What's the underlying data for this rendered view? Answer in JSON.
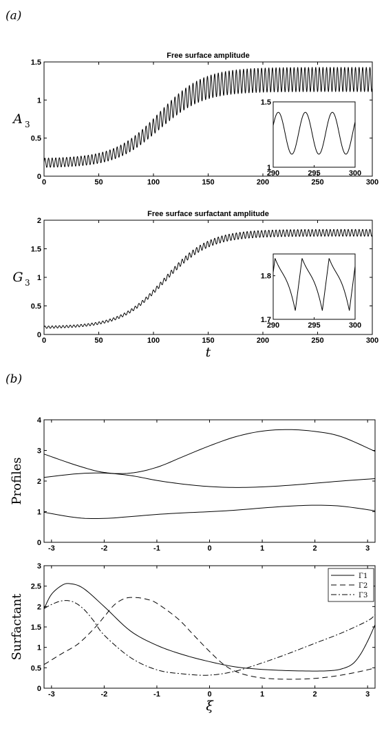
{
  "panel_labels": {
    "a": "(a)",
    "b": "(b)"
  },
  "chart_data": [
    {
      "id": "A3",
      "type": "line",
      "title": "Free surface amplitude",
      "ylabel": "A",
      "ylabel_sub": "3",
      "xlabel": "",
      "xlim": [
        0,
        300
      ],
      "ylim": [
        0,
        1.5
      ],
      "xticks": [
        0,
        50,
        100,
        150,
        200,
        250,
        300
      ],
      "yticks": [
        0,
        0.5,
        1,
        1.5
      ],
      "xtick_labels": [
        "0",
        "50",
        "100",
        "150",
        "200",
        "250",
        "300"
      ],
      "ytick_labels": [
        "0",
        "0.5",
        "1",
        "1.5"
      ],
      "envelope": {
        "t_mid": 105,
        "width": 20,
        "base": 0.17,
        "rise": 1.1,
        "amp_start": 0.06,
        "amp_end": 0.16,
        "period": 3.3
      },
      "series": [
        {
          "x_range": [
            0,
            300
          ],
          "description_values": {
            "min_late": 1.1,
            "max_late": 1.42
          }
        }
      ],
      "inset": {
        "xlim": [
          290,
          300
        ],
        "ylim": [
          1,
          1.5
        ],
        "xticks": [
          290,
          295,
          300
        ],
        "yticks": [
          1,
          1.5
        ],
        "xtick_labels": [
          "290",
          "295",
          "300"
        ],
        "ytick_labels": [
          "1",
          "1.5"
        ]
      }
    },
    {
      "id": "G3",
      "type": "line",
      "title": "Free surface surfactant amplitude",
      "ylabel": "G",
      "ylabel_sub": "3",
      "xlabel": "t",
      "xlim": [
        0,
        300
      ],
      "ylim": [
        0,
        2
      ],
      "xticks": [
        0,
        50,
        100,
        150,
        200,
        250,
        300
      ],
      "yticks": [
        0,
        0.5,
        1,
        1.5,
        2
      ],
      "xtick_labels": [
        "0",
        "50",
        "100",
        "150",
        "200",
        "250",
        "300"
      ],
      "ytick_labels": [
        "0",
        "0.5",
        "1",
        "1.5",
        "2"
      ],
      "envelope": {
        "t_mid": 110,
        "width": 20,
        "base": 0.12,
        "rise": 1.66,
        "amp_start": 0.02,
        "amp_end": 0.06,
        "period": 3.3
      },
      "inset": {
        "xlim": [
          290,
          300
        ],
        "ylim": [
          1.7,
          1.85
        ],
        "xticks": [
          290,
          295,
          300
        ],
        "yticks": [
          1.7,
          1.8
        ],
        "xtick_labels": [
          "290",
          "295",
          "300"
        ],
        "ytick_labels": [
          "1.7",
          "1.8"
        ]
      }
    },
    {
      "id": "profiles",
      "type": "line",
      "title": "",
      "ylabel": "Profiles",
      "xlabel": "",
      "xlim": [
        -3.14159,
        3.14159
      ],
      "ylim": [
        0,
        4
      ],
      "xticks": [
        -3,
        -2,
        -1,
        0,
        1,
        2,
        3
      ],
      "yticks": [
        0,
        1,
        2,
        3,
        4
      ],
      "xtick_labels": [
        "-3",
        "-2",
        "-1",
        "0",
        "1",
        "2",
        "3"
      ],
      "ytick_labels": [
        "0",
        "1",
        "2",
        "3",
        "4"
      ],
      "series": [
        {
          "x": [
            -3.14,
            -2.5,
            -2.0,
            -1.5,
            -1.0,
            -0.5,
            0,
            0.5,
            1.0,
            1.5,
            2.0,
            2.5,
            3.14
          ],
          "y": [
            2.88,
            2.5,
            2.28,
            2.26,
            2.45,
            2.8,
            3.15,
            3.45,
            3.63,
            3.68,
            3.62,
            3.45,
            2.97
          ]
        },
        {
          "x": [
            -3.14,
            -2.5,
            -2.0,
            -1.5,
            -1.0,
            -0.5,
            0,
            0.5,
            1.0,
            1.5,
            2.0,
            2.5,
            3.14
          ],
          "y": [
            2.12,
            2.24,
            2.26,
            2.18,
            2.02,
            1.9,
            1.82,
            1.79,
            1.81,
            1.86,
            1.93,
            2.0,
            2.08
          ]
        },
        {
          "x": [
            -3.14,
            -2.5,
            -2.0,
            -1.5,
            -1.0,
            -0.5,
            0,
            0.5,
            1.0,
            1.5,
            2.0,
            2.5,
            3.14
          ],
          "y": [
            0.98,
            0.8,
            0.78,
            0.84,
            0.91,
            0.96,
            1.0,
            1.05,
            1.12,
            1.18,
            1.21,
            1.18,
            1.03
          ]
        }
      ]
    },
    {
      "id": "surfactant",
      "type": "line",
      "title": "",
      "ylabel": "Surfactant",
      "xlabel": "ξ",
      "xlim": [
        -3.14159,
        3.14159
      ],
      "ylim": [
        0,
        3
      ],
      "xticks": [
        -3,
        -2,
        -1,
        0,
        1,
        2,
        3
      ],
      "yticks": [
        0,
        0.5,
        1,
        1.5,
        2,
        2.5,
        3
      ],
      "xtick_labels": [
        "-3",
        "-2",
        "-1",
        "0",
        "1",
        "2",
        "3"
      ],
      "ytick_labels": [
        "0",
        "0.5",
        "1",
        "1.5",
        "2",
        "2.5",
        "3"
      ],
      "legend": {
        "placement": "top-right",
        "entries": [
          "Γ1",
          "Γ2",
          "Γ3"
        ]
      },
      "series": [
        {
          "name": "Γ1",
          "dash": "solid",
          "x": [
            -3.14,
            -3.0,
            -2.8,
            -2.65,
            -2.4,
            -2.0,
            -1.5,
            -1.0,
            -0.5,
            0,
            0.5,
            1.0,
            1.5,
            2.0,
            2.3,
            2.5,
            2.7,
            2.85,
            3.0,
            3.14
          ],
          "y": [
            1.95,
            2.3,
            2.52,
            2.56,
            2.45,
            2.0,
            1.4,
            1.05,
            0.82,
            0.65,
            0.52,
            0.46,
            0.43,
            0.42,
            0.43,
            0.47,
            0.58,
            0.8,
            1.15,
            1.55
          ]
        },
        {
          "name": "Γ2",
          "dash": "dashed",
          "x": [
            -3.14,
            -2.8,
            -2.5,
            -2.2,
            -2.0,
            -1.8,
            -1.6,
            -1.4,
            -1.2,
            -1.0,
            -0.6,
            -0.3,
            0,
            0.3,
            0.6,
            1.0,
            1.5,
            2.0,
            2.5,
            3.0,
            3.14
          ],
          "y": [
            0.58,
            0.85,
            1.08,
            1.45,
            1.75,
            2.05,
            2.2,
            2.22,
            2.18,
            2.08,
            1.7,
            1.3,
            0.9,
            0.55,
            0.36,
            0.25,
            0.22,
            0.24,
            0.32,
            0.45,
            0.5
          ]
        },
        {
          "name": "Γ3",
          "dash": "dashdot",
          "x": [
            -3.14,
            -3.0,
            -2.8,
            -2.6,
            -2.4,
            -2.2,
            -2.0,
            -1.5,
            -1.0,
            -0.5,
            0,
            0.5,
            1.0,
            1.5,
            2.0,
            2.5,
            3.0,
            3.14
          ],
          "y": [
            1.95,
            2.05,
            2.14,
            2.12,
            1.95,
            1.65,
            1.3,
            0.75,
            0.45,
            0.35,
            0.32,
            0.42,
            0.62,
            0.85,
            1.1,
            1.35,
            1.65,
            1.8
          ]
        }
      ]
    }
  ]
}
